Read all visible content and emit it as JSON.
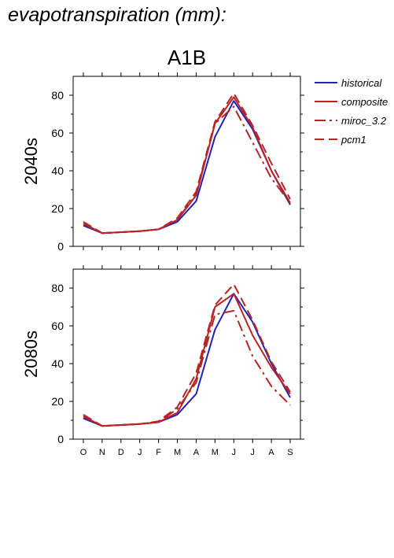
{
  "figure": {
    "title": "evapotranspiration (mm):",
    "scenario": "A1B",
    "months": [
      "O",
      "N",
      "D",
      "J",
      "F",
      "M",
      "A",
      "M",
      "J",
      "J",
      "A",
      "S"
    ],
    "yticks": [
      "0",
      "20",
      "40",
      "60",
      "80"
    ],
    "legend": [
      {
        "name": "historical",
        "color": "#2222bb",
        "dash": "none"
      },
      {
        "name": "composite",
        "color": "#bb2222",
        "dash": "none"
      },
      {
        "name": "miroc_3.2",
        "color": "#bb2222",
        "dash": "14,5,3,5"
      },
      {
        "name": "pcm1",
        "color": "#bb2222",
        "dash": "12,6"
      }
    ]
  },
  "chart_data": [
    {
      "type": "line",
      "title": "A1B",
      "ylabel": "2040s",
      "categories": [
        "O",
        "N",
        "D",
        "J",
        "F",
        "M",
        "A",
        "M",
        "J",
        "J",
        "A",
        "S"
      ],
      "ylim": [
        0,
        90
      ],
      "series": [
        {
          "name": "historical",
          "values": [
            11,
            7,
            7.5,
            8,
            9,
            13,
            24,
            58,
            77,
            62,
            40,
            22
          ]
        },
        {
          "name": "composite",
          "values": [
            12,
            7,
            7.5,
            8,
            9,
            14,
            27,
            65,
            79,
            63,
            40,
            23
          ]
        },
        {
          "name": "miroc_3.2",
          "values": [
            12,
            7,
            7.5,
            8,
            9,
            14,
            28,
            65,
            74,
            55,
            36,
            23
          ]
        },
        {
          "name": "pcm1",
          "values": [
            13,
            7,
            7.5,
            8,
            9,
            15,
            29,
            66,
            81,
            64,
            44,
            25
          ]
        }
      ]
    },
    {
      "type": "line",
      "ylabel": "2080s",
      "categories": [
        "O",
        "N",
        "D",
        "J",
        "F",
        "M",
        "A",
        "M",
        "J",
        "J",
        "A",
        "S"
      ],
      "ylim": [
        0,
        90
      ],
      "series": [
        {
          "name": "historical",
          "values": [
            11,
            7,
            7.5,
            8,
            9,
            13,
            24,
            58,
            77,
            62,
            40,
            22
          ]
        },
        {
          "name": "composite",
          "values": [
            12,
            7,
            7.5,
            8,
            9,
            14,
            32,
            70,
            77,
            55,
            38,
            24
          ]
        },
        {
          "name": "miroc_3.2",
          "values": [
            12,
            7,
            7.5,
            8,
            9,
            16,
            30,
            66,
            68,
            44,
            28,
            18
          ]
        },
        {
          "name": "pcm1",
          "values": [
            13,
            7,
            7.5,
            8,
            9.5,
            17,
            35,
            71,
            82,
            63,
            41,
            25
          ]
        }
      ]
    }
  ]
}
